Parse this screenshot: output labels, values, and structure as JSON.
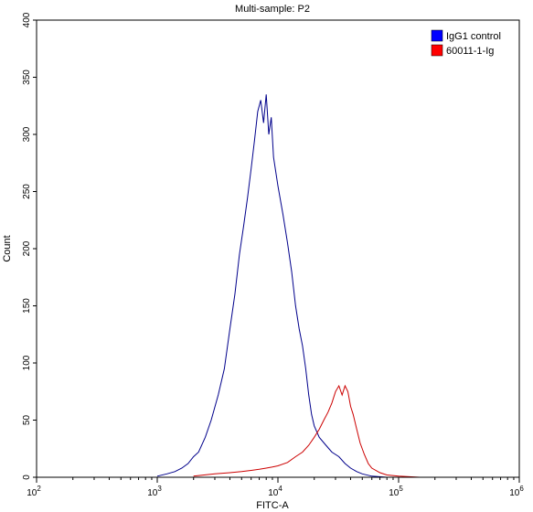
{
  "chart_data": {
    "type": "line",
    "title": "Multi-sample: P2",
    "xlabel": "FITC-A",
    "ylabel": "Count",
    "x_scale": "log",
    "xlim": [
      100,
      1000000
    ],
    "ylim": [
      0,
      400
    ],
    "x_ticks": [
      {
        "value": 100,
        "base": "10",
        "exp": "2"
      },
      {
        "value": 1000,
        "base": "10",
        "exp": "3"
      },
      {
        "value": 10000,
        "base": "10",
        "exp": "4"
      },
      {
        "value": 100000,
        "base": "10",
        "exp": "5"
      },
      {
        "value": 1000000,
        "base": "10",
        "exp": "6"
      }
    ],
    "y_ticks": [
      "0",
      "50",
      "100",
      "150",
      "200",
      "250",
      "300",
      "350",
      "400"
    ],
    "grid": false,
    "legend_position": "top-right",
    "series": [
      {
        "name": "IgG1 control",
        "color": "#00008b",
        "legend_color": "#0000ff",
        "points": [
          [
            1000,
            1
          ],
          [
            1200,
            3
          ],
          [
            1400,
            5
          ],
          [
            1600,
            8
          ],
          [
            1800,
            12
          ],
          [
            2000,
            18
          ],
          [
            2200,
            22
          ],
          [
            2500,
            35
          ],
          [
            2800,
            50
          ],
          [
            3200,
            72
          ],
          [
            3600,
            95
          ],
          [
            4000,
            130
          ],
          [
            4400,
            160
          ],
          [
            4800,
            195
          ],
          [
            5200,
            220
          ],
          [
            5600,
            245
          ],
          [
            6000,
            270
          ],
          [
            6400,
            295
          ],
          [
            6800,
            320
          ],
          [
            7200,
            330
          ],
          [
            7600,
            310
          ],
          [
            8000,
            335
          ],
          [
            8400,
            300
          ],
          [
            8800,
            315
          ],
          [
            9200,
            280
          ],
          [
            10000,
            255
          ],
          [
            11000,
            230
          ],
          [
            12000,
            205
          ],
          [
            13000,
            180
          ],
          [
            14000,
            150
          ],
          [
            15000,
            130
          ],
          [
            16000,
            115
          ],
          [
            17000,
            95
          ],
          [
            18000,
            72
          ],
          [
            19000,
            55
          ],
          [
            20000,
            45
          ],
          [
            22000,
            35
          ],
          [
            25000,
            28
          ],
          [
            28000,
            22
          ],
          [
            32000,
            18
          ],
          [
            36000,
            12
          ],
          [
            40000,
            8
          ],
          [
            45000,
            5
          ],
          [
            50000,
            3
          ],
          [
            60000,
            1
          ],
          [
            80000,
            0
          ]
        ]
      },
      {
        "name": "60011-1-Ig",
        "color": "#cc0000",
        "legend_color": "#ff0000",
        "points": [
          [
            2000,
            1
          ],
          [
            3000,
            3
          ],
          [
            4000,
            4
          ],
          [
            5000,
            5
          ],
          [
            6000,
            6
          ],
          [
            7000,
            7
          ],
          [
            8000,
            8
          ],
          [
            9000,
            9
          ],
          [
            10000,
            10
          ],
          [
            12000,
            13
          ],
          [
            14000,
            18
          ],
          [
            16000,
            22
          ],
          [
            18000,
            28
          ],
          [
            20000,
            35
          ],
          [
            22000,
            42
          ],
          [
            24000,
            50
          ],
          [
            26000,
            57
          ],
          [
            28000,
            65
          ],
          [
            30000,
            75
          ],
          [
            32000,
            80
          ],
          [
            34000,
            72
          ],
          [
            36000,
            80
          ],
          [
            38000,
            75
          ],
          [
            40000,
            62
          ],
          [
            42000,
            55
          ],
          [
            45000,
            42
          ],
          [
            48000,
            30
          ],
          [
            52000,
            20
          ],
          [
            56000,
            12
          ],
          [
            60000,
            8
          ],
          [
            70000,
            4
          ],
          [
            80000,
            2
          ],
          [
            100000,
            1
          ],
          [
            150000,
            0
          ]
        ]
      }
    ]
  }
}
